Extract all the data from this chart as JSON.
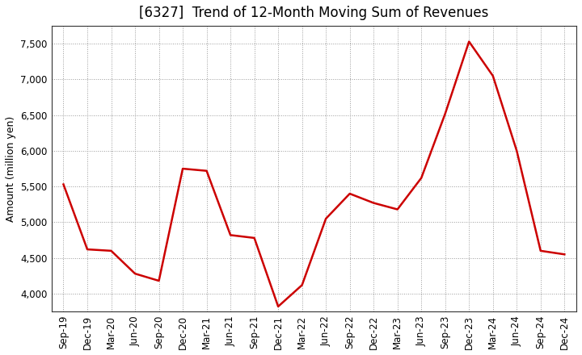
{
  "title": "[6327]  Trend of 12-Month Moving Sum of Revenues",
  "ylabel": "Amount (million yen)",
  "line_color": "#cc0000",
  "line_width": 1.8,
  "background_color": "#ffffff",
  "grid_color": "#999999",
  "labels": [
    "Sep-19",
    "Dec-19",
    "Mar-20",
    "Jun-20",
    "Sep-20",
    "Dec-20",
    "Mar-21",
    "Jun-21",
    "Sep-21",
    "Dec-21",
    "Mar-22",
    "Jun-22",
    "Sep-22",
    "Dec-22",
    "Mar-23",
    "Jun-23",
    "Sep-23",
    "Dec-23",
    "Mar-24",
    "Jun-24",
    "Sep-24",
    "Dec-24"
  ],
  "values": [
    5530,
    4620,
    4600,
    4280,
    4180,
    5750,
    5720,
    4820,
    4780,
    3820,
    4120,
    5050,
    5400,
    5270,
    5180,
    5620,
    6520,
    7530,
    7050,
    6000,
    4600,
    4550
  ],
  "ylim": [
    3750,
    7750
  ],
  "yticks": [
    4000,
    4500,
    5000,
    5500,
    6000,
    6500,
    7000,
    7500
  ],
  "title_fontsize": 12,
  "axis_fontsize": 9,
  "tick_fontsize": 8.5
}
